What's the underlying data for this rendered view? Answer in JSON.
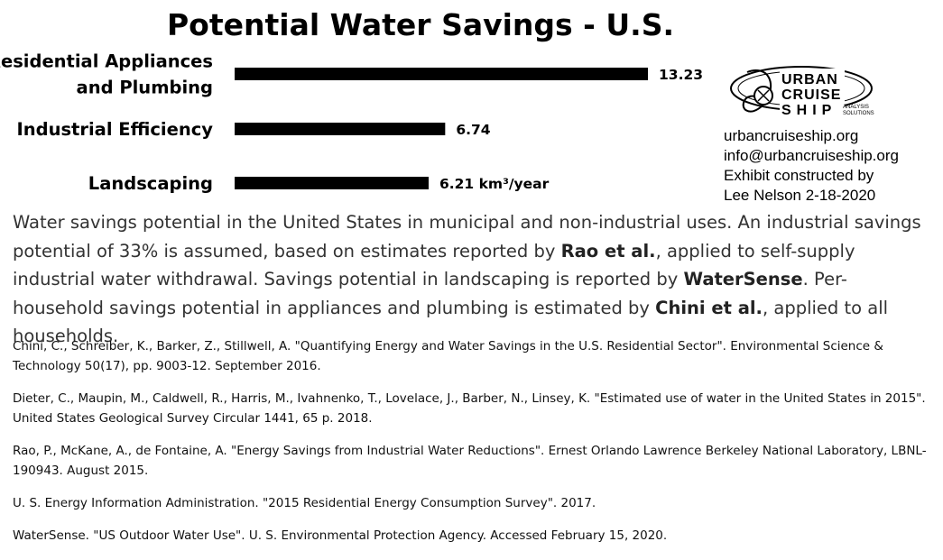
{
  "title": "Potential Water Savings - U.S.",
  "chart_data": {
    "type": "bar",
    "orientation": "horizontal",
    "categories": [
      "Residential Appliances and Plumbing",
      "Industrial Efficiency",
      "Landscaping"
    ],
    "category_lines": [
      [
        "Residential Appliances",
        "and Plumbing"
      ],
      [
        "Industrial Efficiency"
      ],
      [
        "Landscaping"
      ]
    ],
    "values": [
      13.23,
      6.74,
      6.21
    ],
    "value_labels": [
      "13.23",
      "6.74",
      "6.21"
    ],
    "unit_label": "km³/year",
    "bar_color": "#000000",
    "title": "Potential Water Savings - U.S.",
    "xlabel": "",
    "ylabel": "",
    "grid": false,
    "legend": "none"
  },
  "logo": {
    "line1": "URBAN",
    "line2": "CRUISE",
    "line3": "SHIP",
    "tag": "ANALYSIS SOLUTIONS",
    "tag1": "ANALYSIS",
    "tag2": "SOLUTIONS"
  },
  "contact": {
    "website": "urbancruiseship.org",
    "email": "info@urbancruiseship.org",
    "credit_line1": "Exhibit constructed by",
    "credit_line2": "Lee Nelson 2-18-2020"
  },
  "description": {
    "p1": "Water savings potential in the United States in municipal and non-industrial uses. An industrial savings potential of 33% is assumed, based on estimates reported by ",
    "b1": "Rao et al.",
    "p2": ", applied to self-supply industrial water withdrawal. Savings potential in landscaping is reported by ",
    "b2": "WaterSense",
    "p3": ". Per-household savings potential in appliances and plumbing is estimated by ",
    "b3": "Chini et al.",
    "p4": ", applied to all households."
  },
  "references": [
    "Chini, C., Schreiber, K., Barker, Z., Stillwell, A. \"Quantifying Energy and Water Savings in the U.S. Residential Sector\". Environmental Science & Technology 50(17), pp. 9003-12. September 2016.",
    "Dieter, C., Maupin, M., Caldwell, R., Harris, M., Ivahnenko, T., Lovelace, J., Barber, N., Linsey, K. \"Estimated use of water in the United States in 2015\". United States Geological Survey Circular 1441, 65 p. 2018.",
    "Rao, P., McKane, A., de Fontaine, A. \"Energy Savings from Industrial Water Reductions\". Ernest Orlando Lawrence Berkeley National Laboratory, LBNL-190943. August 2015.",
    "U. S. Energy Information Administration. \"2015 Residential Energy Consumption Survey\". 2017.",
    "WaterSense. \"US Outdoor Water Use\". U. S. Environmental Protection Agency. Accessed February 15, 2020."
  ]
}
